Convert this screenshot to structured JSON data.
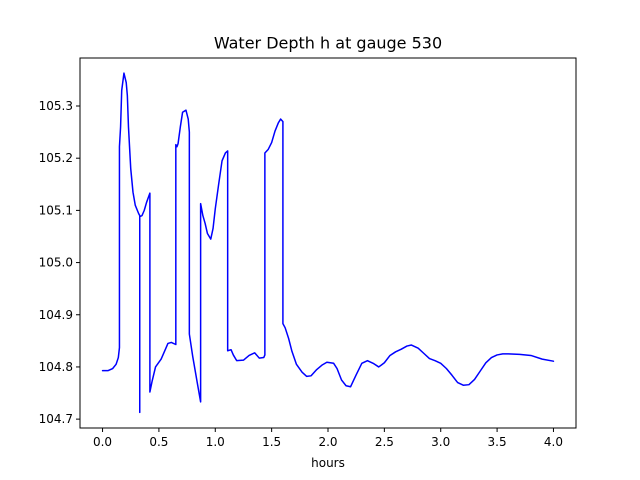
{
  "chart_data": {
    "type": "line",
    "title": "Water Depth h at gauge 530",
    "xlabel": "hours",
    "ylabel": "",
    "xlim": [
      -0.2,
      4.2
    ],
    "ylim": [
      104.683,
      105.392
    ],
    "x_ticks": [
      0.0,
      0.5,
      1.0,
      1.5,
      2.0,
      2.5,
      3.0,
      3.5,
      4.0
    ],
    "x_tick_labels": [
      "0.0",
      "0.5",
      "1.0",
      "1.5",
      "2.0",
      "2.5",
      "3.0",
      "3.5",
      "4.0"
    ],
    "y_ticks": [
      104.7,
      104.8,
      104.9,
      105.0,
      105.1,
      105.2,
      105.3
    ],
    "y_tick_labels": [
      "104.7",
      "104.8",
      "104.9",
      "105.0",
      "105.1",
      "105.2",
      "105.3"
    ],
    "grid": false,
    "legend": "none",
    "series": [
      {
        "color": "#0000ff",
        "points": [
          [
            0.0,
            104.793
          ],
          [
            0.05,
            104.793
          ],
          [
            0.09,
            104.797
          ],
          [
            0.12,
            104.805
          ],
          [
            0.14,
            104.818
          ],
          [
            0.15,
            104.837
          ],
          [
            0.15,
            105.222
          ],
          [
            0.16,
            105.26
          ],
          [
            0.17,
            105.33
          ],
          [
            0.19,
            105.363
          ],
          [
            0.21,
            105.345
          ],
          [
            0.22,
            105.32
          ],
          [
            0.23,
            105.26
          ],
          [
            0.25,
            105.18
          ],
          [
            0.27,
            105.135
          ],
          [
            0.29,
            105.11
          ],
          [
            0.32,
            105.094
          ],
          [
            0.33,
            105.09
          ],
          [
            0.33,
            104.713
          ],
          [
            0.33,
            105.088
          ],
          [
            0.35,
            105.09
          ],
          [
            0.37,
            105.1
          ],
          [
            0.39,
            105.115
          ],
          [
            0.42,
            105.133
          ],
          [
            0.42,
            104.752
          ],
          [
            0.44,
            104.773
          ],
          [
            0.47,
            104.8
          ],
          [
            0.52,
            104.815
          ],
          [
            0.56,
            104.835
          ],
          [
            0.58,
            104.845
          ],
          [
            0.61,
            104.847
          ],
          [
            0.65,
            104.843
          ],
          [
            0.65,
            105.226
          ],
          [
            0.66,
            105.222
          ],
          [
            0.67,
            105.228
          ],
          [
            0.69,
            105.26
          ],
          [
            0.71,
            105.288
          ],
          [
            0.74,
            105.292
          ],
          [
            0.76,
            105.275
          ],
          [
            0.77,
            105.25
          ],
          [
            0.77,
            104.863
          ],
          [
            0.8,
            104.82
          ],
          [
            0.84,
            104.77
          ],
          [
            0.87,
            104.733
          ],
          [
            0.87,
            105.113
          ],
          [
            0.89,
            105.09
          ],
          [
            0.91,
            105.075
          ],
          [
            0.93,
            105.056
          ],
          [
            0.96,
            105.045
          ],
          [
            0.98,
            105.065
          ],
          [
            1.0,
            105.103
          ],
          [
            1.03,
            105.15
          ],
          [
            1.06,
            105.195
          ],
          [
            1.09,
            105.21
          ],
          [
            1.11,
            105.214
          ],
          [
            1.11,
            104.831
          ],
          [
            1.14,
            104.833
          ],
          [
            1.16,
            104.823
          ],
          [
            1.19,
            104.812
          ],
          [
            1.25,
            104.813
          ],
          [
            1.3,
            104.822
          ],
          [
            1.35,
            104.827
          ],
          [
            1.39,
            104.817
          ],
          [
            1.43,
            104.818
          ],
          [
            1.44,
            104.823
          ],
          [
            1.44,
            105.21
          ],
          [
            1.47,
            105.217
          ],
          [
            1.5,
            105.23
          ],
          [
            1.53,
            105.252
          ],
          [
            1.56,
            105.268
          ],
          [
            1.58,
            105.275
          ],
          [
            1.6,
            105.27
          ],
          [
            1.6,
            104.883
          ],
          [
            1.62,
            104.875
          ],
          [
            1.65,
            104.855
          ],
          [
            1.68,
            104.83
          ],
          [
            1.72,
            104.805
          ],
          [
            1.77,
            104.79
          ],
          [
            1.81,
            104.782
          ],
          [
            1.85,
            104.783
          ],
          [
            1.9,
            104.795
          ],
          [
            1.95,
            104.804
          ],
          [
            1.99,
            104.809
          ],
          [
            2.05,
            104.807
          ],
          [
            2.08,
            104.797
          ],
          [
            2.12,
            104.775
          ],
          [
            2.16,
            104.764
          ],
          [
            2.2,
            104.762
          ],
          [
            2.25,
            104.785
          ],
          [
            2.3,
            104.807
          ],
          [
            2.35,
            104.812
          ],
          [
            2.4,
            104.807
          ],
          [
            2.45,
            104.8
          ],
          [
            2.5,
            104.808
          ],
          [
            2.55,
            104.822
          ],
          [
            2.6,
            104.829
          ],
          [
            2.65,
            104.834
          ],
          [
            2.7,
            104.84
          ],
          [
            2.74,
            104.842
          ],
          [
            2.8,
            104.836
          ],
          [
            2.85,
            104.826
          ],
          [
            2.9,
            104.816
          ],
          [
            2.95,
            104.812
          ],
          [
            3.0,
            104.807
          ],
          [
            3.05,
            104.797
          ],
          [
            3.1,
            104.784
          ],
          [
            3.15,
            104.77
          ],
          [
            3.2,
            104.765
          ],
          [
            3.25,
            104.766
          ],
          [
            3.3,
            104.776
          ],
          [
            3.35,
            104.792
          ],
          [
            3.4,
            104.808
          ],
          [
            3.45,
            104.818
          ],
          [
            3.5,
            104.823
          ],
          [
            3.55,
            104.825
          ],
          [
            3.6,
            104.825
          ],
          [
            3.7,
            104.824
          ],
          [
            3.8,
            104.822
          ],
          [
            3.9,
            104.815
          ],
          [
            4.0,
            104.811
          ]
        ]
      }
    ]
  }
}
